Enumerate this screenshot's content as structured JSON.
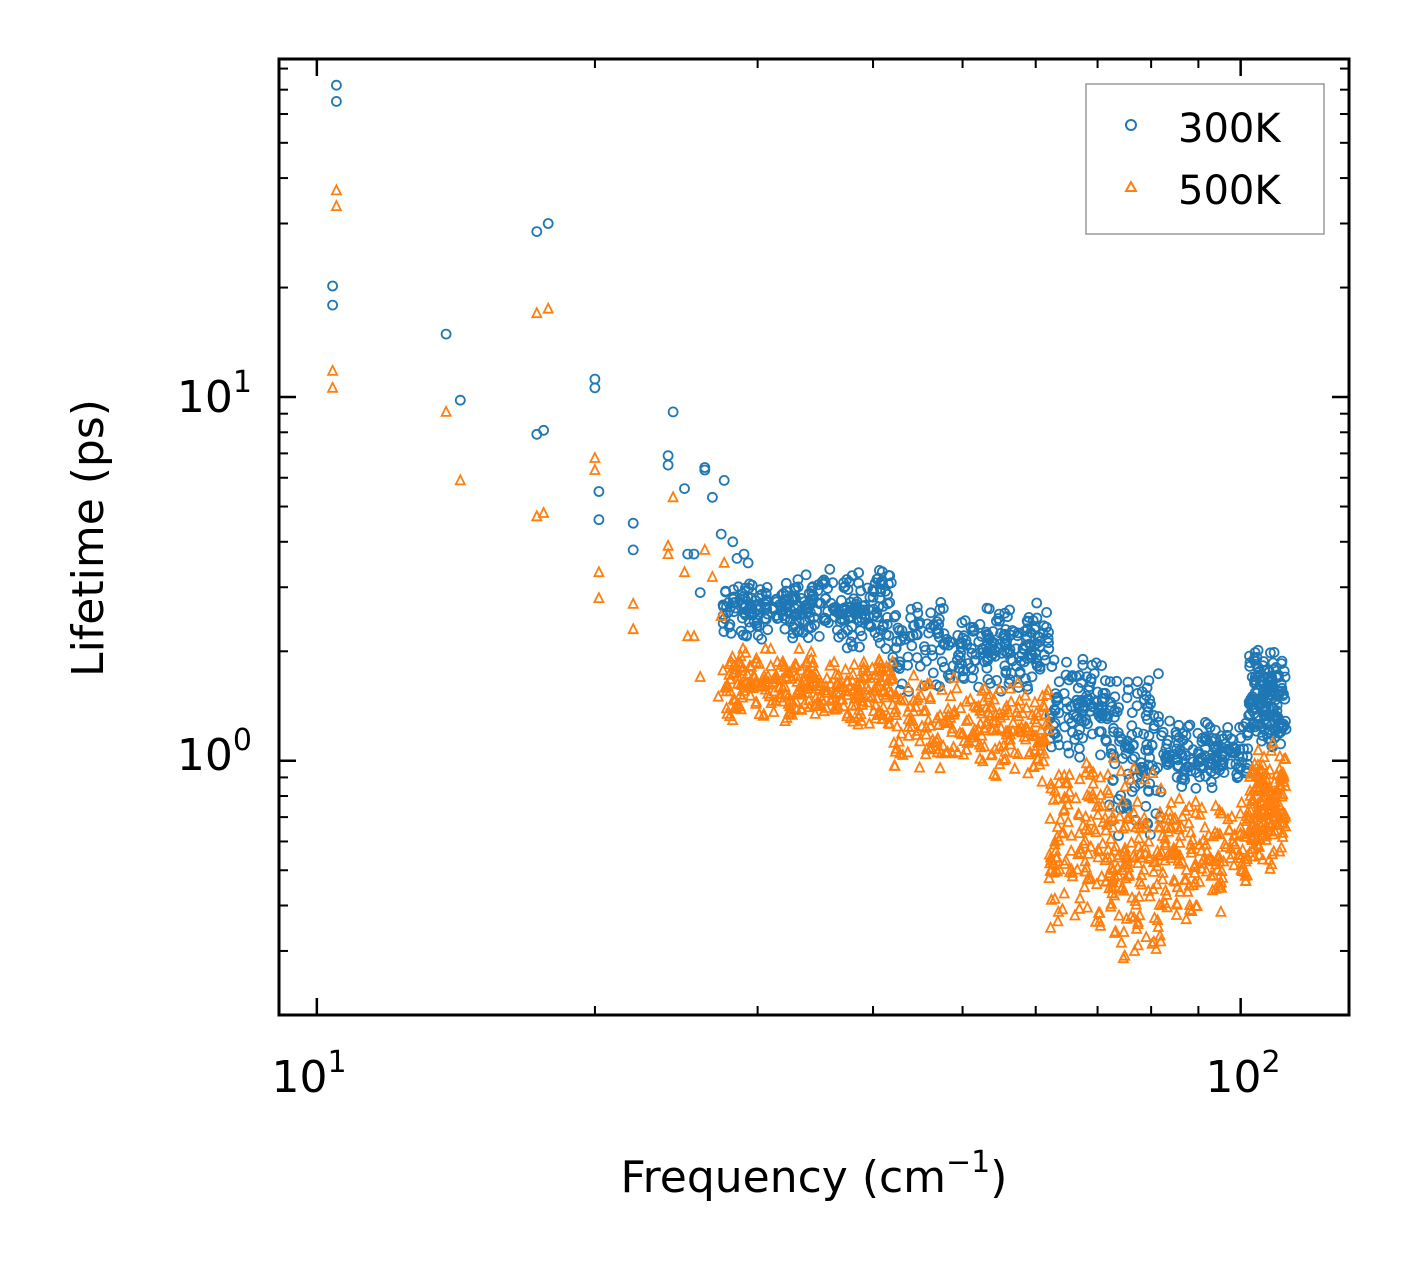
{
  "chart_data": {
    "type": "scatter",
    "title": "",
    "xlabel": "Frequency (cm",
    "xlabel_sup": "−1",
    "xlabel_tail": ")",
    "ylabel": "Lifetime (ps)",
    "xscale": "log",
    "yscale": "log",
    "xlim": [
      9.1,
      131
    ],
    "ylim": [
      0.2,
      85
    ],
    "x_ticks": [
      {
        "base": "10",
        "exp": "1",
        "value": 10
      },
      {
        "base": "10",
        "exp": "2",
        "value": 100
      }
    ],
    "y_ticks": [
      {
        "base": "10",
        "exp": "0",
        "value": 1
      },
      {
        "base": "10",
        "exp": "1",
        "value": 10
      }
    ],
    "legend_position": "top-right",
    "series": [
      {
        "name": "300K",
        "marker": "circle",
        "color": "#1f77b4",
        "points": [
          [
            10.4,
            20.2
          ],
          [
            10.4,
            17.9
          ],
          [
            10.5,
            72.0
          ],
          [
            10.5,
            65.0
          ],
          [
            13.8,
            14.9
          ],
          [
            14.3,
            9.8
          ],
          [
            17.3,
            28.5
          ],
          [
            17.8,
            30.0
          ],
          [
            17.3,
            7.9
          ],
          [
            17.6,
            8.1
          ],
          [
            20.0,
            11.2
          ],
          [
            20.0,
            10.6
          ],
          [
            20.2,
            5.5
          ],
          [
            20.2,
            4.6
          ],
          [
            22.0,
            4.5
          ],
          [
            22.0,
            3.8
          ],
          [
            24.0,
            6.9
          ],
          [
            24.0,
            6.5
          ],
          [
            24.3,
            9.1
          ],
          [
            25.0,
            5.6
          ],
          [
            25.2,
            3.7
          ],
          [
            25.6,
            3.7
          ],
          [
            26.0,
            2.9
          ],
          [
            26.3,
            6.4
          ],
          [
            26.3,
            6.3
          ],
          [
            26.8,
            5.3
          ],
          [
            27.6,
            5.9
          ],
          [
            27.4,
            4.2
          ],
          [
            28.2,
            4.0
          ],
          [
            28.5,
            3.6
          ],
          [
            29.0,
            3.7
          ],
          [
            29.3,
            3.5
          ]
        ],
        "clusters": [
          {
            "x_range": [
              27.5,
              34.5
            ],
            "y_lo": 2.1,
            "y_hi": 3.3,
            "count": 170
          },
          {
            "x_range": [
              34.5,
              37.5
            ],
            "y_lo": 2.0,
            "y_hi": 3.4,
            "count": 50
          },
          {
            "x_range": [
              37.5,
              42.0
            ],
            "y_lo": 2.0,
            "y_hi": 3.5,
            "count": 90
          },
          {
            "x_range": [
              42.0,
              52.0
            ],
            "y_lo": 1.5,
            "y_hi": 2.9,
            "count": 110
          },
          {
            "x_range": [
              52.0,
              62.0
            ],
            "y_lo": 1.5,
            "y_hi": 2.8,
            "count": 130
          },
          {
            "x_range": [
              62.0,
              72.0
            ],
            "y_lo": 1.0,
            "y_hi": 2.0,
            "count": 110
          },
          {
            "x_range": [
              72.0,
              82.0
            ],
            "y_lo": 0.6,
            "y_hi": 1.9,
            "count": 110
          },
          {
            "x_range": [
              82.0,
              96.0
            ],
            "y_lo": 0.8,
            "y_hi": 1.3,
            "count": 110
          },
          {
            "x_range": [
              96.0,
              102.0
            ],
            "y_lo": 0.85,
            "y_hi": 1.3,
            "count": 40
          },
          {
            "x_range": [
              102.0,
              112.0
            ],
            "y_lo": 1.05,
            "y_hi": 2.1,
            "count": 170
          }
        ]
      },
      {
        "name": "500K",
        "marker": "triangle",
        "color": "#ff7f0e",
        "points": [
          [
            10.4,
            11.8
          ],
          [
            10.4,
            10.6
          ],
          [
            10.5,
            37.0
          ],
          [
            10.5,
            33.5
          ],
          [
            13.8,
            9.1
          ],
          [
            14.3,
            5.9
          ],
          [
            17.3,
            17.0
          ],
          [
            17.8,
            17.5
          ],
          [
            17.3,
            4.7
          ],
          [
            17.6,
            4.8
          ],
          [
            20.0,
            6.8
          ],
          [
            20.0,
            6.3
          ],
          [
            20.2,
            3.3
          ],
          [
            20.2,
            2.8
          ],
          [
            22.0,
            2.7
          ],
          [
            22.0,
            2.3
          ],
          [
            24.0,
            3.9
          ],
          [
            24.0,
            3.7
          ],
          [
            24.3,
            5.3
          ],
          [
            25.0,
            3.3
          ],
          [
            25.2,
            2.2
          ],
          [
            25.6,
            2.2
          ],
          [
            26.0,
            1.7
          ],
          [
            26.3,
            3.8
          ],
          [
            26.8,
            3.2
          ],
          [
            27.6,
            3.5
          ],
          [
            27.4,
            2.5
          ],
          [
            27.2,
            1.5
          ]
        ],
        "clusters": [
          {
            "x_range": [
              27.5,
              34.5
            ],
            "y_lo": 1.25,
            "y_hi": 2.1,
            "count": 170
          },
          {
            "x_range": [
              34.5,
              37.5
            ],
            "y_lo": 1.3,
            "y_hi": 1.9,
            "count": 50
          },
          {
            "x_range": [
              37.5,
              42.0
            ],
            "y_lo": 1.2,
            "y_hi": 2.0,
            "count": 90
          },
          {
            "x_range": [
              42.0,
              52.0
            ],
            "y_lo": 0.9,
            "y_hi": 1.8,
            "count": 110
          },
          {
            "x_range": [
              52.0,
              62.0
            ],
            "y_lo": 0.85,
            "y_hi": 1.7,
            "count": 130
          },
          {
            "x_range": [
              62.0,
              72.0
            ],
            "y_lo": 0.3,
            "y_hi": 1.2,
            "count": 130
          },
          {
            "x_range": [
              72.0,
              82.0
            ],
            "y_lo": 0.25,
            "y_hi": 1.1,
            "count": 130
          },
          {
            "x_range": [
              82.0,
              96.0
            ],
            "y_lo": 0.35,
            "y_hi": 0.8,
            "count": 120
          },
          {
            "x_range": [
              96.0,
              102.0
            ],
            "y_lo": 0.45,
            "y_hi": 0.8,
            "count": 40
          },
          {
            "x_range": [
              102.0,
              112.0
            ],
            "y_lo": 0.5,
            "y_hi": 1.15,
            "count": 170
          }
        ]
      }
    ]
  }
}
